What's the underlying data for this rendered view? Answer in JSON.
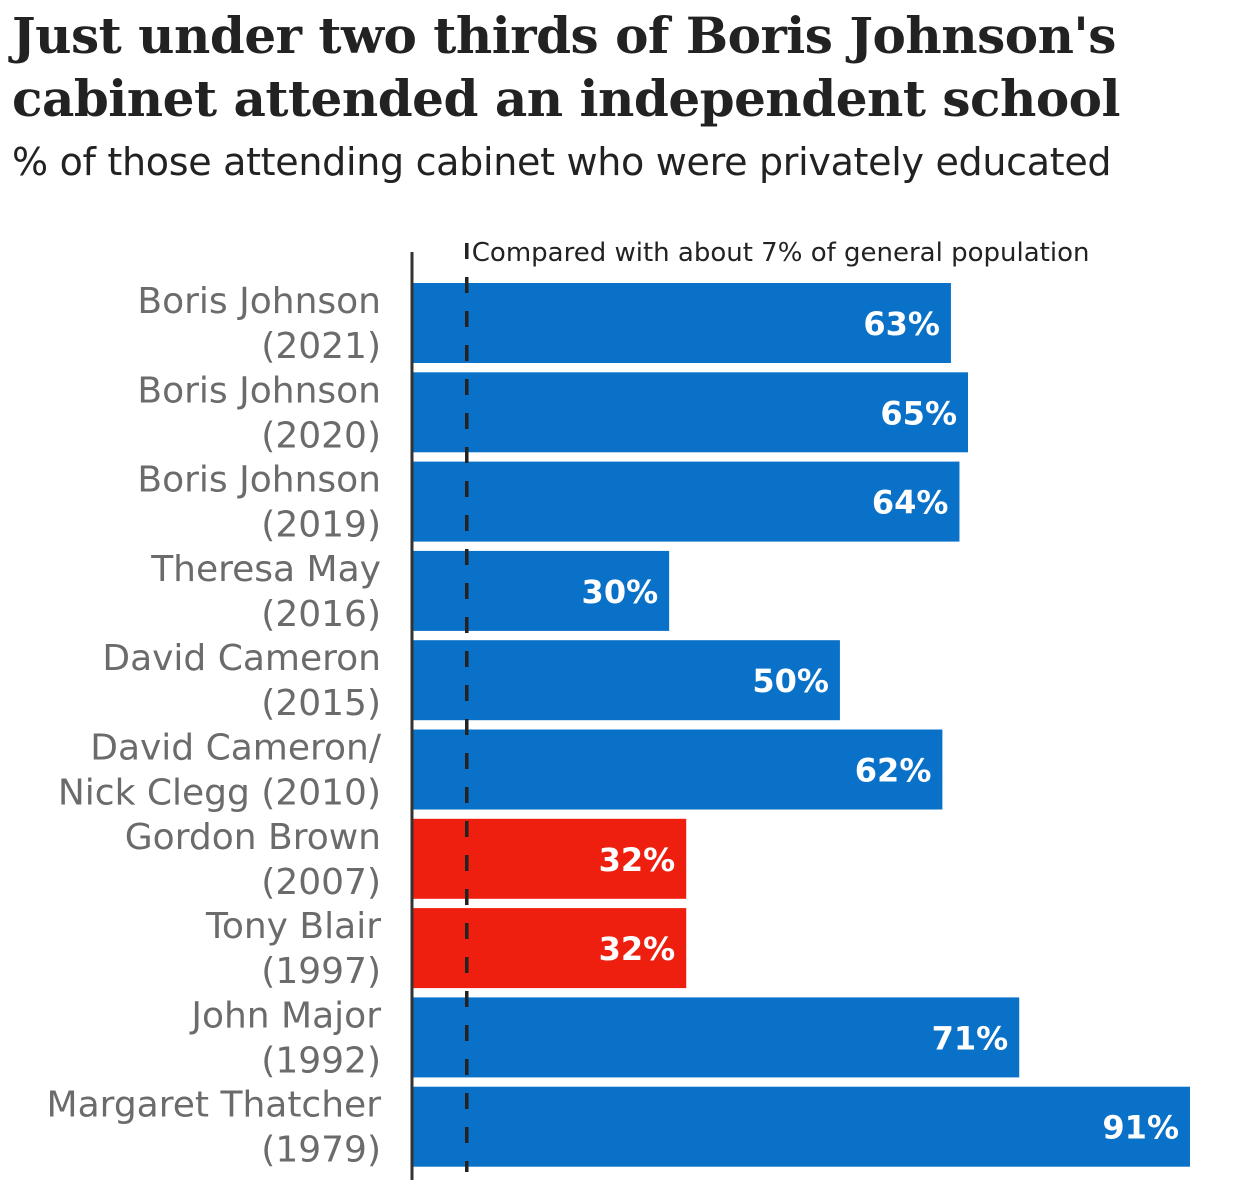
{
  "chart_data": {
    "type": "bar",
    "orientation": "horizontal",
    "title": "Just under two thirds of Boris Johnson's cabinet attended an independent school",
    "title_lines": [
      "Just under two thirds of Boris Johnson's",
      "cabinet attended an independent school"
    ],
    "subtitle": "% of those attending cabinet who were privately educated",
    "categories": [
      [
        "Boris Johnson",
        "(2021)"
      ],
      [
        "Boris Johnson",
        "(2020)"
      ],
      [
        "Boris Johnson",
        "(2019)"
      ],
      [
        "Theresa May",
        "(2016)"
      ],
      [
        "David Cameron",
        "(2015)"
      ],
      [
        "David Cameron/",
        "Nick Clegg (2010)"
      ],
      [
        "Gordon Brown",
        "(2007)"
      ],
      [
        "Tony Blair",
        "(1997)"
      ],
      [
        "John Major",
        "(1992)"
      ],
      [
        "Margaret Thatcher",
        "(1979)"
      ]
    ],
    "values": [
      63,
      65,
      64,
      30,
      50,
      62,
      32,
      32,
      71,
      91
    ],
    "value_labels": [
      "63%",
      "65%",
      "64%",
      "30%",
      "50%",
      "62%",
      "32%",
      "32%",
      "71%",
      "91%"
    ],
    "party": [
      "con",
      "con",
      "con",
      "con",
      "con",
      "con",
      "lab",
      "lab",
      "con",
      "con"
    ],
    "colors": {
      "con": "#0a71c9",
      "lab": "#ee1f0f"
    },
    "reference_line": {
      "value": 7,
      "label": "Compared with about 7% of general population"
    },
    "xlim": [
      0,
      91
    ],
    "grid": false
  }
}
